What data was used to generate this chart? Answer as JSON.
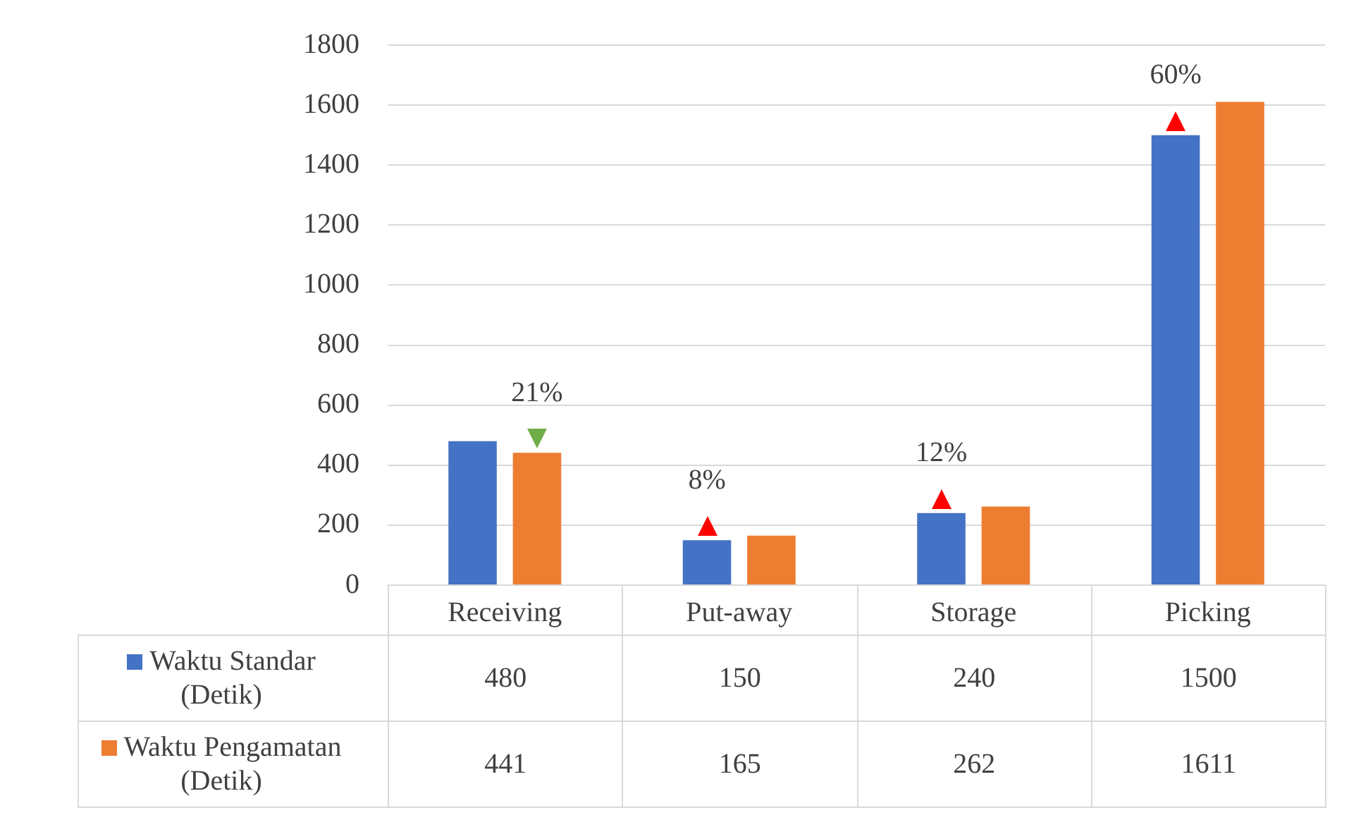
{
  "chart_data": {
    "type": "bar",
    "categories": [
      "Receiving",
      "Put-away",
      "Storage",
      "Picking"
    ],
    "series": [
      {
        "name": "Waktu Standar (Detik)",
        "color": "#4472c4",
        "values": [
          480,
          150,
          240,
          1500
        ]
      },
      {
        "name": "Waktu Pengamatan (Detik)",
        "color": "#ed7d31",
        "values": [
          441,
          165,
          262,
          1611
        ]
      }
    ],
    "ylim": [
      0,
      1800
    ],
    "yticks": [
      0,
      200,
      400,
      600,
      800,
      1000,
      1200,
      1400,
      1600,
      1800
    ],
    "grid": "y",
    "legend": "bottom",
    "data_labels": true,
    "annotations": [
      "21%",
      "8%",
      "12%",
      "60%"
    ]
  }
}
